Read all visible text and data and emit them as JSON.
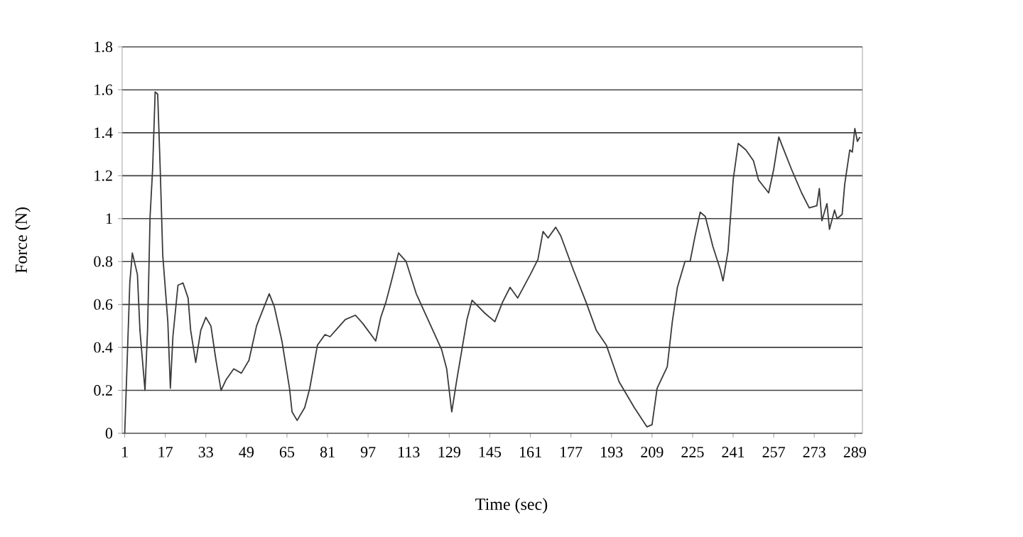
{
  "chart_data": {
    "type": "line",
    "xlabel": "Time (sec)",
    "ylabel": "Force (N)",
    "xlim": [
      0,
      292
    ],
    "xticks": [
      1,
      17,
      33,
      49,
      65,
      81,
      97,
      113,
      129,
      145,
      161,
      177,
      193,
      209,
      225,
      241,
      257,
      273,
      289
    ],
    "ylim": [
      0,
      1.8
    ],
    "yticks": [
      0,
      0.2,
      0.4,
      0.6,
      0.8,
      1,
      1.2,
      1.4,
      1.6,
      1.8
    ],
    "grid": "y",
    "marker": "none",
    "line_style": "solid",
    "series": [
      {
        "color": "#3a3a3a",
        "x": [
          1,
          3,
          4,
          6,
          7,
          9,
          10,
          11,
          12,
          13,
          14,
          15,
          16,
          18,
          19,
          20,
          22,
          24,
          26,
          27,
          29,
          31,
          33,
          35,
          37,
          39,
          41,
          44,
          47,
          50,
          53,
          56,
          58,
          60,
          63,
          66,
          67,
          69,
          72,
          74,
          77,
          80,
          82,
          85,
          88,
          92,
          95,
          100,
          102,
          104,
          106,
          109,
          112,
          116,
          121,
          126,
          128,
          130,
          132,
          136,
          138,
          143,
          147,
          150,
          153,
          156,
          161,
          164,
          166,
          168,
          171,
          173,
          178,
          183,
          187,
          191,
          196,
          202,
          207,
          209,
          211,
          215,
          217,
          219,
          222,
          224,
          226,
          228,
          230,
          233,
          236,
          237,
          239,
          241,
          243,
          246,
          249,
          251,
          255,
          257,
          259,
          261,
          264,
          268,
          271,
          274,
          275,
          276,
          278,
          279,
          281,
          282,
          284,
          285,
          287,
          288,
          289,
          290,
          291
        ],
        "values": [
          0.0,
          0.7,
          0.84,
          0.74,
          0.48,
          0.2,
          0.48,
          1.01,
          1.23,
          1.59,
          1.58,
          1.23,
          0.83,
          0.52,
          0.21,
          0.45,
          0.69,
          0.7,
          0.63,
          0.48,
          0.33,
          0.48,
          0.54,
          0.5,
          0.34,
          0.2,
          0.25,
          0.3,
          0.28,
          0.34,
          0.5,
          0.59,
          0.65,
          0.59,
          0.43,
          0.21,
          0.1,
          0.06,
          0.12,
          0.21,
          0.41,
          0.46,
          0.45,
          0.49,
          0.53,
          0.55,
          0.51,
          0.43,
          0.54,
          0.61,
          0.7,
          0.84,
          0.8,
          0.65,
          0.52,
          0.39,
          0.3,
          0.1,
          0.25,
          0.53,
          0.62,
          0.56,
          0.52,
          0.61,
          0.68,
          0.63,
          0.74,
          0.81,
          0.94,
          0.91,
          0.96,
          0.92,
          0.76,
          0.61,
          0.48,
          0.41,
          0.24,
          0.12,
          0.03,
          0.04,
          0.21,
          0.31,
          0.52,
          0.68,
          0.8,
          0.8,
          0.92,
          1.03,
          1.01,
          0.87,
          0.76,
          0.71,
          0.85,
          1.18,
          1.35,
          1.32,
          1.27,
          1.18,
          1.12,
          1.23,
          1.38,
          1.32,
          1.23,
          1.12,
          1.05,
          1.06,
          1.14,
          0.99,
          1.07,
          0.95,
          1.04,
          1.0,
          1.02,
          1.16,
          1.32,
          1.31,
          1.42,
          1.36,
          1.38
        ]
      }
    ]
  }
}
